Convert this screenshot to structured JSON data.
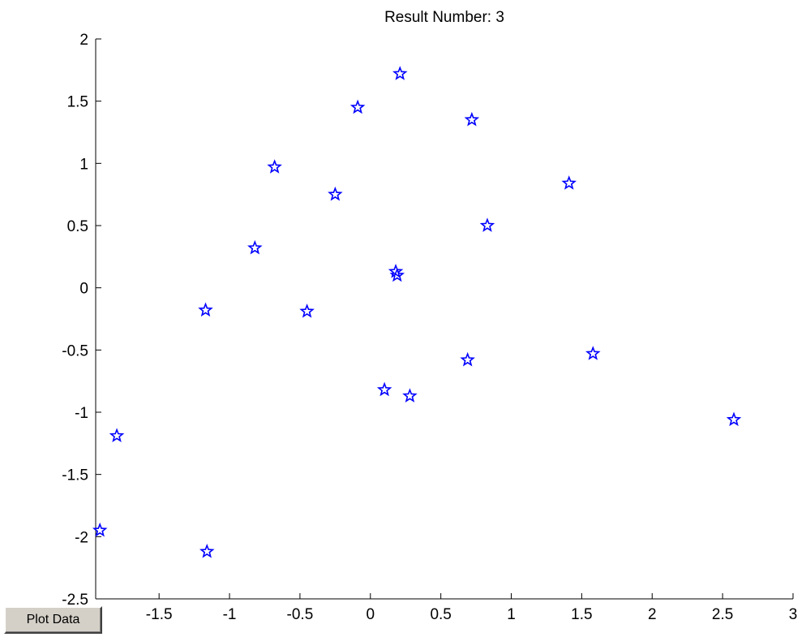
{
  "plot_button": {
    "label": "Plot Data"
  },
  "chart_data": {
    "type": "scatter",
    "title": "Result Number: 3",
    "xlabel": "",
    "ylabel": "",
    "xlim": [
      -1.95,
      3
    ],
    "ylim": [
      -2.5,
      2
    ],
    "x_ticks": [
      -1.5,
      -1,
      -0.5,
      0,
      0.5,
      1,
      1.5,
      2,
      2.5,
      3
    ],
    "x_tick_labels": [
      "-1.5",
      "-1",
      "-0.5",
      "0",
      "0.5",
      "1",
      "1.5",
      "2",
      "2.5",
      "3"
    ],
    "y_ticks": [
      2,
      1.5,
      1,
      0.5,
      0,
      -0.5,
      -1,
      -1.5,
      -2,
      -2.5
    ],
    "y_tick_labels": [
      "2",
      "1.5",
      "1",
      "0.5",
      "0",
      "-0.5",
      "-1",
      "-1.5",
      "-2",
      "-2.5"
    ],
    "marker": "pentagram",
    "marker_color": "#0000ff",
    "grid": false,
    "series": [
      {
        "points": [
          {
            "x": 0.21,
            "y": 1.72
          },
          {
            "x": -0.09,
            "y": 1.45
          },
          {
            "x": 0.72,
            "y": 1.35
          },
          {
            "x": -0.68,
            "y": 0.97
          },
          {
            "x": 1.41,
            "y": 0.84
          },
          {
            "x": -0.25,
            "y": 0.75
          },
          {
            "x": 0.83,
            "y": 0.5
          },
          {
            "x": -0.82,
            "y": 0.32
          },
          {
            "x": 0.18,
            "y": 0.13
          },
          {
            "x": 0.19,
            "y": 0.1
          },
          {
            "x": -1.17,
            "y": -0.18
          },
          {
            "x": -0.45,
            "y": -0.19
          },
          {
            "x": 1.58,
            "y": -0.53
          },
          {
            "x": 0.69,
            "y": -0.58
          },
          {
            "x": 0.1,
            "y": -0.82
          },
          {
            "x": 0.28,
            "y": -0.87
          },
          {
            "x": 2.58,
            "y": -1.06
          },
          {
            "x": -1.8,
            "y": -1.19
          },
          {
            "x": -1.92,
            "y": -1.95
          },
          {
            "x": -1.16,
            "y": -2.12
          }
        ]
      }
    ]
  }
}
